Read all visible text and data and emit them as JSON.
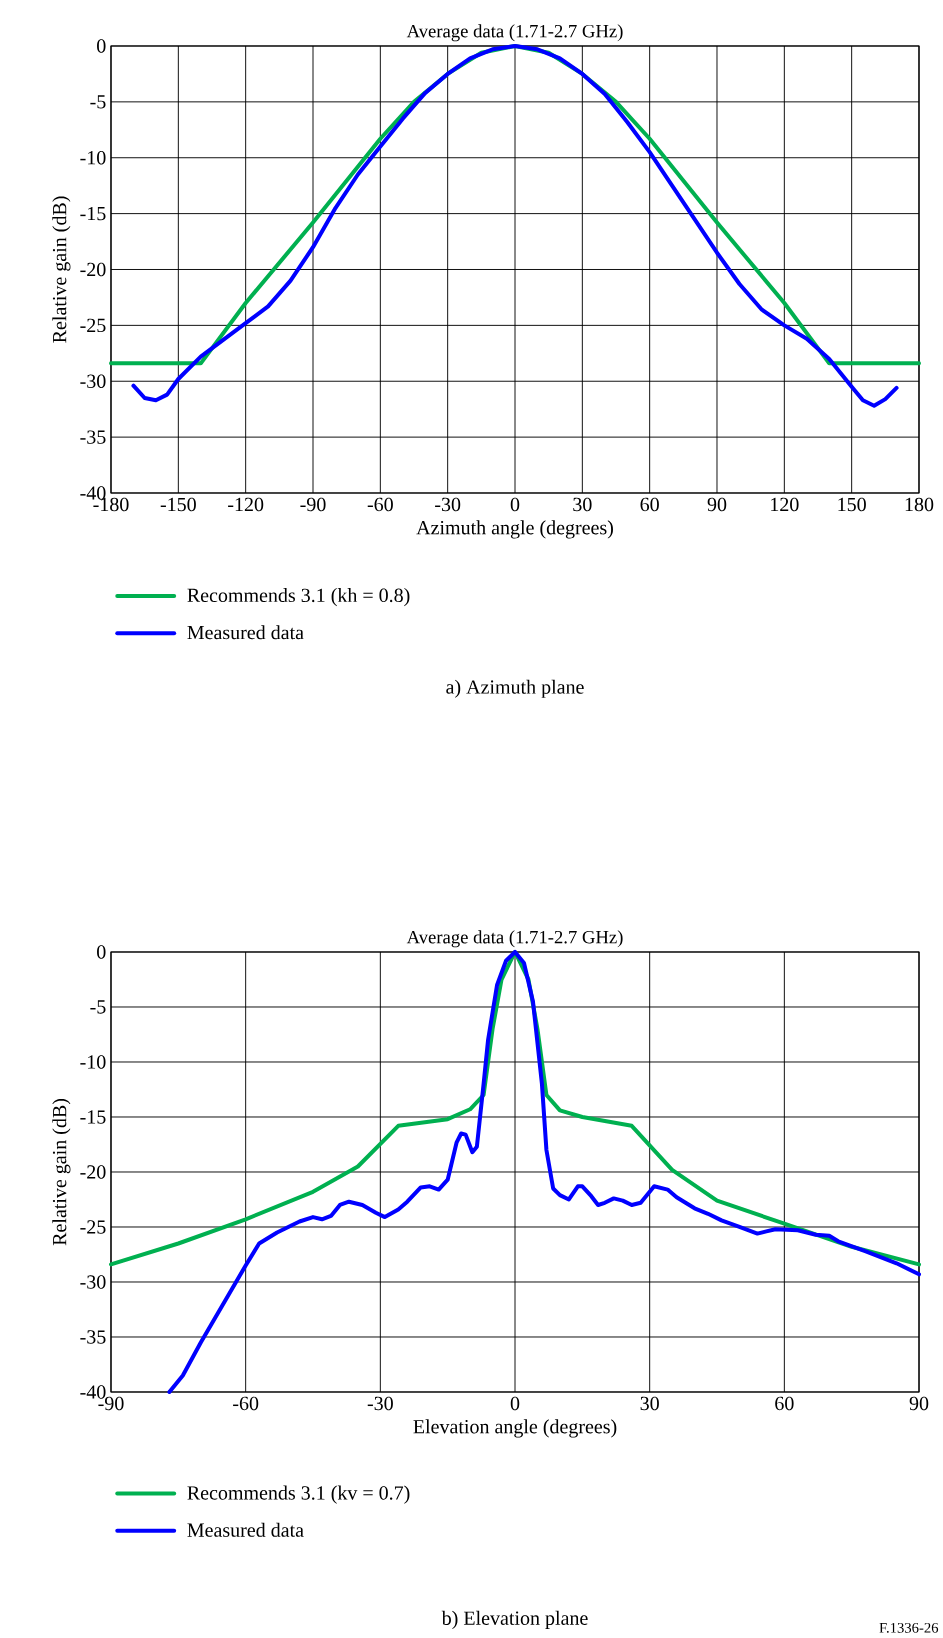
{
  "chart_data": [
    {
      "type": "line",
      "title": "Average data (1.71-2.7 GHz)",
      "xlabel": "Azimuth angle (degrees)",
      "ylabel": "Relative gain (dB)",
      "series": [
        {
          "name": "Recommends 3.1 (kh = 0.8)",
          "color": "#00b050",
          "x": [
            -180,
            -140,
            -120,
            -90,
            -60,
            -45,
            -30,
            -15,
            0,
            15,
            30,
            45,
            60,
            90,
            120,
            140,
            180
          ],
          "values": [
            -28.4,
            -28.4,
            -23,
            -15.8,
            -8.3,
            -5,
            -2.5,
            -0.6,
            0,
            -0.6,
            -2.5,
            -5,
            -8.3,
            -15.8,
            -23,
            -28.4,
            -28.4
          ]
        },
        {
          "name": "Measured data",
          "color": "#0000ff",
          "x": [
            -170,
            -165,
            -160,
            -155,
            -150,
            -140,
            -130,
            -120,
            -110,
            -100,
            -90,
            -80,
            -70,
            -60,
            -50,
            -40,
            -30,
            -20,
            -10,
            0,
            10,
            20,
            30,
            40,
            50,
            60,
            70,
            80,
            90,
            100,
            110,
            120,
            130,
            140,
            150,
            155,
            160,
            165,
            170
          ],
          "values": [
            -30.4,
            -31.5,
            -31.7,
            -31.2,
            -29.8,
            -27.8,
            -26.3,
            -24.8,
            -23.3,
            -21,
            -18,
            -14.5,
            -11.5,
            -9,
            -6.5,
            -4.2,
            -2.5,
            -1.1,
            -0.3,
            0,
            -0.3,
            -1.1,
            -2.5,
            -4.3,
            -6.8,
            -9.5,
            -12.5,
            -15.5,
            -18.5,
            -21.3,
            -23.6,
            -25,
            -26.2,
            -28,
            -30.5,
            -31.7,
            -32.2,
            -31.6,
            -30.6
          ]
        }
      ],
      "xlim": [
        -180,
        180
      ],
      "ylim": [
        -40,
        0
      ],
      "xticks": [
        -180,
        -150,
        -120,
        -90,
        -60,
        -30,
        0,
        30,
        60,
        90,
        120,
        150,
        180
      ],
      "yticks": [
        -40,
        -35,
        -30,
        -25,
        -20,
        -15,
        -10,
        -5,
        0
      ],
      "grid": true,
      "legend": "bottom",
      "marker": "none",
      "line_style": "solid",
      "annotations": [
        "a) Azimuth plane"
      ]
    },
    {
      "type": "line",
      "title": "Average data (1.71-2.7 GHz)",
      "xlabel": "Elevation angle (degrees)",
      "ylabel": "Relative gain (dB)",
      "series": [
        {
          "name": "Recommends 3.1 (kv = 0.7)",
          "color": "#00b050",
          "x": [
            -90,
            -75,
            -60,
            -45,
            -35,
            -26,
            -15,
            -10,
            -7,
            -5,
            -3,
            0,
            3,
            5,
            7,
            10,
            15,
            26,
            35,
            45,
            60,
            75,
            90
          ],
          "values": [
            -28.4,
            -26.5,
            -24.3,
            -21.8,
            -19.5,
            -15.8,
            -15.2,
            -14.3,
            -13,
            -7,
            -2.5,
            0,
            -2.5,
            -7,
            -13,
            -14.4,
            -15,
            -15.8,
            -19.8,
            -22.6,
            -24.7,
            -26.8,
            -28.4
          ]
        },
        {
          "name": "Measured data",
          "color": "#0000ff",
          "x": [
            -77,
            -74,
            -70,
            -65,
            -60,
            -57,
            -53,
            -48,
            -45,
            -43,
            -41,
            -39,
            -37,
            -34,
            -31,
            -29,
            -26,
            -24,
            -21,
            -19,
            -17,
            -15,
            -13,
            -12,
            -11,
            -9.5,
            -8.5,
            -7,
            -6,
            -4,
            -2,
            0,
            2,
            4,
            6,
            7,
            8.5,
            10,
            12,
            14,
            15,
            17,
            18.5,
            20,
            22,
            24,
            26,
            28,
            31,
            34,
            36,
            38,
            40,
            43,
            46,
            50,
            54,
            56,
            58,
            63,
            67,
            70,
            72,
            78,
            85,
            90
          ],
          "values": [
            -40,
            -38.5,
            -35.5,
            -32,
            -28.5,
            -26.5,
            -25.5,
            -24.5,
            -24.1,
            -24.3,
            -24,
            -23,
            -22.7,
            -23,
            -23.7,
            -24.1,
            -23.4,
            -22.7,
            -21.4,
            -21.3,
            -21.6,
            -20.7,
            -17.3,
            -16.5,
            -16.6,
            -18.2,
            -17.7,
            -12,
            -8,
            -3,
            -0.8,
            0,
            -1,
            -4.5,
            -12,
            -18,
            -21.5,
            -22.1,
            -22.5,
            -21.3,
            -21.3,
            -22.2,
            -23,
            -22.8,
            -22.4,
            -22.6,
            -23,
            -22.8,
            -21.3,
            -21.6,
            -22.3,
            -22.8,
            -23.3,
            -23.8,
            -24.4,
            -25,
            -25.6,
            -25.4,
            -25.2,
            -25.3,
            -25.7,
            -25.8,
            -26.3,
            -27.2,
            -28.3,
            -29.3
          ]
        }
      ],
      "xlim": [
        -90,
        90
      ],
      "ylim": [
        -40,
        0
      ],
      "xticks": [
        -90,
        -60,
        -30,
        0,
        30,
        60,
        90
      ],
      "yticks": [
        -40,
        -35,
        -30,
        -25,
        -20,
        -15,
        -10,
        -5,
        0
      ],
      "grid": true,
      "legend": "bottom",
      "marker": "none",
      "line_style": "solid",
      "annotations": [
        "b) Elevation plane",
        "F.1336-26"
      ]
    }
  ]
}
